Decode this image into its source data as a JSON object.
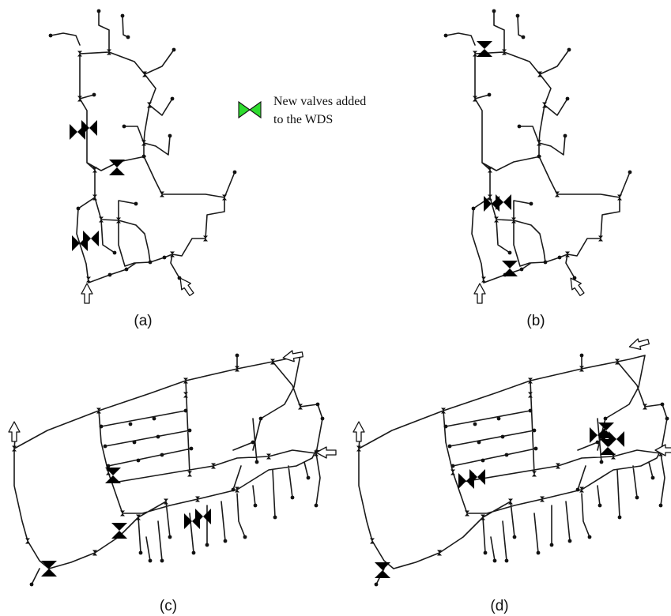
{
  "panels": [
    {
      "id": "a",
      "caption": "(a)"
    },
    {
      "id": "b",
      "caption": "(b)"
    },
    {
      "id": "c",
      "caption": "(c)"
    },
    {
      "id": "d",
      "caption": "(d)"
    }
  ],
  "legend": {
    "line1": "New valves added",
    "line2": "to the WDS",
    "icon": "valve-icon",
    "color": "#2fdc2f"
  },
  "colors": {
    "pipe": "#1a1a1a",
    "valve_fill": "#2fdc2f",
    "inlet_arrow": "#ffffff"
  }
}
